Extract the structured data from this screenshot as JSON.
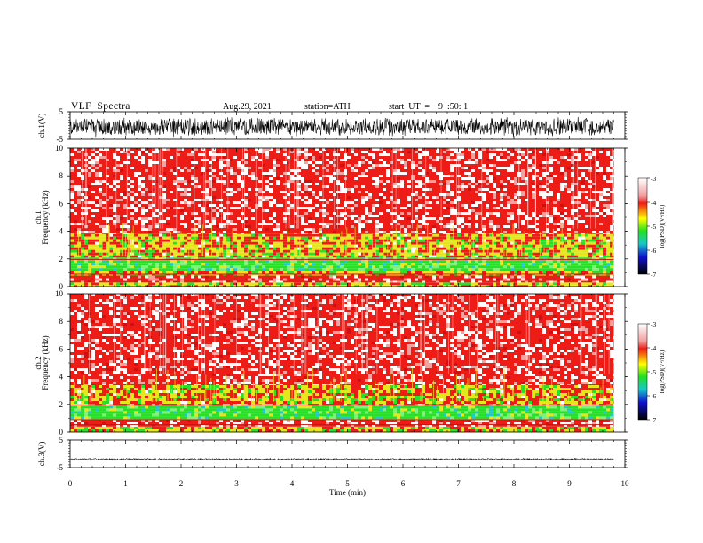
{
  "header": {
    "title": "VLF  Spectra",
    "date": "Aug.29, 2021",
    "station": "station=ATH",
    "start": "start  UT  =    9  :50: 1"
  },
  "colors": {
    "background": "#ffffff",
    "waveform": "#000000",
    "spectrogram_red": "#ee1c16",
    "spectrogram_yellow": "#e6e61e",
    "spectrogram_green": "#28e028"
  },
  "chart_data": [
    {
      "type": "line",
      "name": "ch1-waveform",
      "ylabel": "ch.1(V)",
      "ylim": [
        -5,
        5
      ],
      "yticks": [
        5,
        -5
      ],
      "xlim": [
        0,
        10
      ],
      "envelope": {
        "min": -4.2,
        "max": 3.2
      }
    },
    {
      "type": "heatmap",
      "name": "ch1-spectrogram",
      "ylabel": "ch.1\nFrequency (kHz)",
      "ylim": [
        0,
        10
      ],
      "yticks": [
        0,
        2,
        4,
        6,
        8,
        10
      ],
      "xlim": [
        0,
        10
      ],
      "data_end_min": 9.8,
      "bands_khz": [
        {
          "from": 0.0,
          "to": 0.3,
          "level": "yellow"
        },
        {
          "from": 0.3,
          "to": 0.8,
          "level": "red"
        },
        {
          "from": 0.8,
          "to": 1.1,
          "level": "yellow"
        },
        {
          "from": 1.1,
          "to": 2.1,
          "level": "green"
        },
        {
          "from": 2.1,
          "to": 3.8,
          "level": "yellow-mixed"
        },
        {
          "from": 3.8,
          "to": 10.0,
          "level": "red"
        }
      ],
      "colorbar": {
        "label": "log(PSD)(V²/Hz)",
        "ticks": [
          -3,
          -4,
          -5,
          -6,
          -7
        ],
        "range": [
          -7,
          -3
        ]
      }
    },
    {
      "type": "heatmap",
      "name": "ch2-spectrogram",
      "ylabel": "ch.2\nFrequency (kHz)",
      "ylim": [
        0,
        10
      ],
      "yticks": [
        0,
        2,
        4,
        6,
        8,
        10
      ],
      "xlim": [
        0,
        10
      ],
      "data_end_min": 9.8,
      "bands_khz": [
        {
          "from": 0.0,
          "to": 0.4,
          "level": "yellow"
        },
        {
          "from": 0.4,
          "to": 0.9,
          "level": "red"
        },
        {
          "from": 0.9,
          "to": 1.9,
          "level": "green"
        },
        {
          "from": 1.9,
          "to": 3.4,
          "level": "yellow-mixed"
        },
        {
          "from": 3.4,
          "to": 10.0,
          "level": "red"
        }
      ],
      "colorbar": {
        "label": "log(PSD)(V²/Hz)",
        "ticks": [
          -3,
          -4,
          -5,
          -6,
          -7
        ],
        "range": [
          -7,
          -3
        ]
      }
    },
    {
      "type": "line",
      "name": "ch3-waveform",
      "ylabel": "ch.3(V)",
      "ylim": [
        -5,
        5
      ],
      "yticks": [
        5,
        -5
      ],
      "xlim": [
        0,
        10
      ],
      "envelope": {
        "min": -2.3,
        "max": -1.6
      },
      "xlabel": "Time  (min)",
      "xticks": [
        0,
        1,
        2,
        3,
        4,
        5,
        6,
        7,
        8,
        9,
        10
      ]
    }
  ]
}
